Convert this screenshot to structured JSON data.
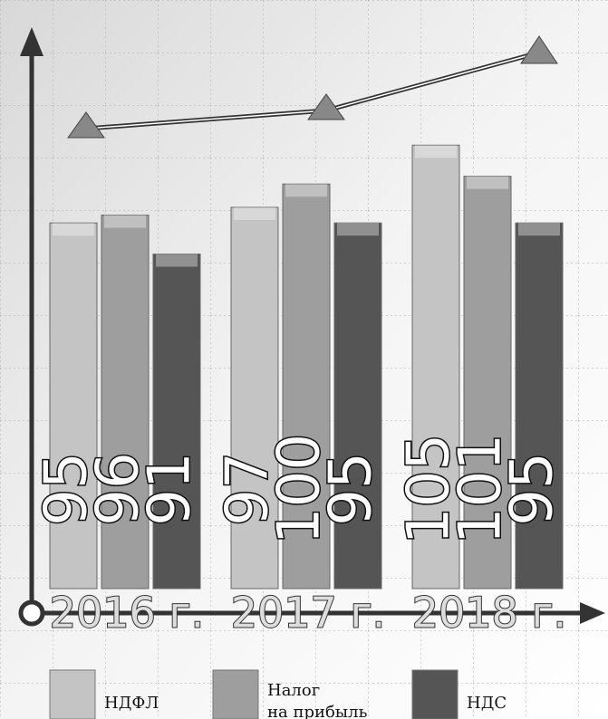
{
  "chart_data": {
    "type": "bar",
    "categories": [
      "2016 г.",
      "2017 г.",
      "2018 г."
    ],
    "series": [
      {
        "name": "НДФЛ",
        "color": "#c4c4c4",
        "values": [
          95,
          97,
          105
        ]
      },
      {
        "name": "Налог на прибыль",
        "color": "#9e9e9e",
        "values": [
          96,
          100,
          101
        ]
      },
      {
        "name": "НДС",
        "color": "#555555",
        "values": [
          91,
          95,
          95
        ]
      }
    ],
    "ylim": [
      48,
      119
    ]
  }
}
